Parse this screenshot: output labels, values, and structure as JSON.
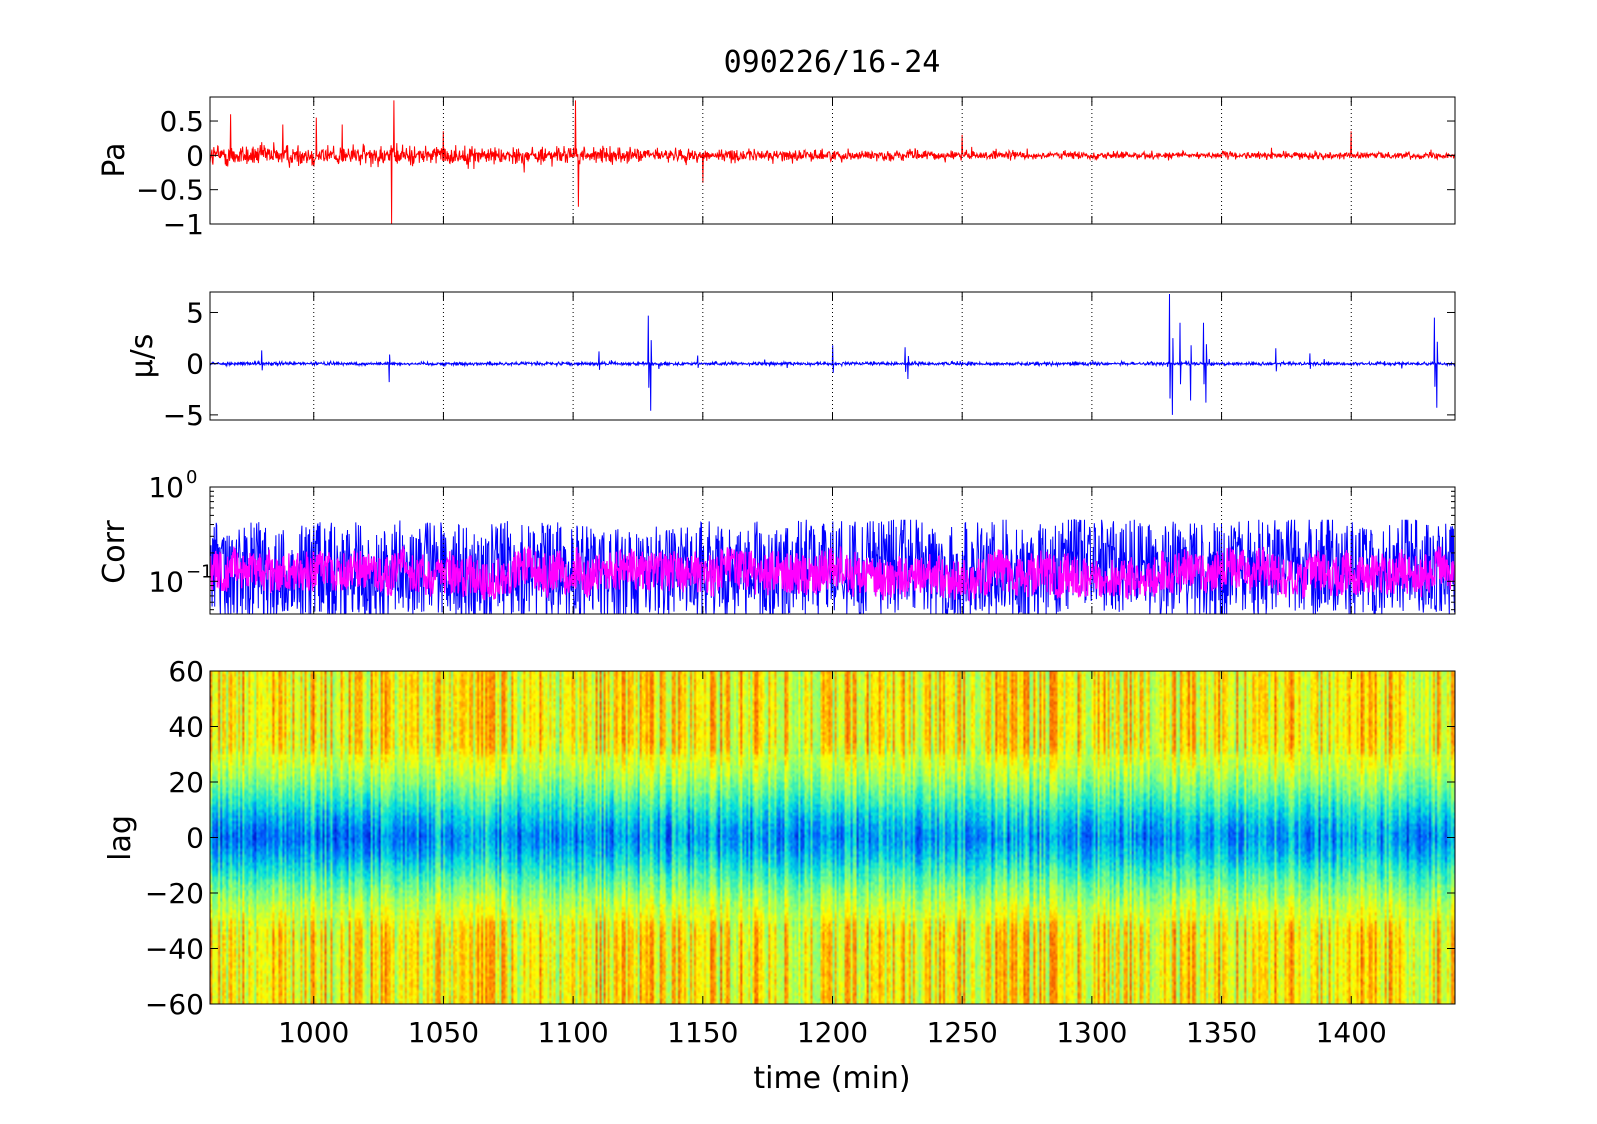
{
  "figure": {
    "title": "090226/16-24",
    "xlabel": "time (min)"
  },
  "chart_data": [
    {
      "type": "line",
      "panel": "pressure",
      "ylabel": "Pa",
      "xlim": [
        960,
        1440
      ],
      "ylim": [
        -1,
        0.85
      ],
      "xticks": [
        1000,
        1050,
        1100,
        1150,
        1200,
        1250,
        1300,
        1350,
        1400
      ],
      "yticks": [
        -1,
        -0.5,
        0,
        0.5
      ],
      "ytick_labels": [
        "−1",
        "−0.5",
        "0",
        "0.5"
      ],
      "grid": "x-dotted",
      "series": [
        {
          "color": "#ff0000",
          "noise_amplitude_trend": [
            [
              960,
              0.22
            ],
            [
              1050,
              0.18
            ],
            [
              1150,
              0.12
            ],
            [
              1300,
              0.07
            ],
            [
              1440,
              0.06
            ]
          ],
          "spikes": [
            [
              968,
              0.6
            ],
            [
              988,
              0.45
            ],
            [
              1001,
              0.55
            ],
            [
              1011,
              0.45
            ],
            [
              1030,
              -1.0
            ],
            [
              1031,
              0.8
            ],
            [
              1050,
              0.35
            ],
            [
              1101,
              0.8
            ],
            [
              1102,
              -0.75
            ],
            [
              1150,
              -0.4
            ],
            [
              1250,
              0.3
            ],
            [
              1400,
              0.35
            ]
          ]
        }
      ]
    },
    {
      "type": "line",
      "panel": "velocity",
      "ylabel": "μ/s",
      "xlim": [
        960,
        1440
      ],
      "ylim": [
        -5.5,
        7
      ],
      "xticks": [
        1000,
        1050,
        1100,
        1150,
        1200,
        1250,
        1300,
        1350,
        1400
      ],
      "yticks": [
        -5,
        0,
        5
      ],
      "ytick_labels": [
        "−5",
        "0",
        "5"
      ],
      "grid": "x-dotted",
      "series": [
        {
          "color": "#0000ff",
          "noise_amplitude": 0.25,
          "spikes": [
            [
              980,
              1.3
            ],
            [
              1029,
              -1.8
            ],
            [
              1110,
              1.2
            ],
            [
              1129,
              4.7
            ],
            [
              1130,
              -4.6
            ],
            [
              1148,
              0.8
            ],
            [
              1200,
              1.8
            ],
            [
              1228,
              1.6
            ],
            [
              1229,
              -1.5
            ],
            [
              1330,
              6.8
            ],
            [
              1331,
              -5.0
            ],
            [
              1334,
              4.0
            ],
            [
              1338,
              -3.6
            ],
            [
              1343,
              4.0
            ],
            [
              1344,
              -3.8
            ],
            [
              1371,
              1.5
            ],
            [
              1384,
              1.0
            ],
            [
              1432,
              4.5
            ],
            [
              1433,
              -4.3
            ]
          ]
        }
      ]
    },
    {
      "type": "line",
      "panel": "correlation",
      "ylabel": "Corr",
      "yscale": "log",
      "xlim": [
        960,
        1440
      ],
      "ylim": [
        0.045,
        1.0
      ],
      "xticks": [
        1000,
        1050,
        1100,
        1150,
        1200,
        1250,
        1300,
        1350,
        1400
      ],
      "yticks": [
        0.1,
        1.0
      ],
      "ytick_labels": [
        {
          "base": "10",
          "exp": "−1"
        },
        {
          "base": "10",
          "exp": "0"
        }
      ],
      "grid": "x-dotted",
      "series": [
        {
          "color": "#0000ff",
          "typical_range": [
            0.045,
            0.4
          ]
        },
        {
          "color": "#ff00ff",
          "typical_range": [
            0.06,
            0.25
          ]
        }
      ]
    },
    {
      "type": "heatmap",
      "panel": "lag",
      "ylabel": "lag",
      "xlim": [
        960,
        1440
      ],
      "ylim": [
        -60,
        60
      ],
      "xticks": [
        1000,
        1050,
        1100,
        1150,
        1200,
        1250,
        1300,
        1350,
        1400
      ],
      "xtick_labels": [
        "1000",
        "1050",
        "1100",
        "1150",
        "1200",
        "1250",
        "1300",
        "1350",
        "1400"
      ],
      "yticks": [
        -60,
        -40,
        -20,
        0,
        20,
        40,
        60
      ],
      "ytick_labels": [
        "−60",
        "−40",
        "−20",
        "0",
        "20",
        "40",
        "60"
      ],
      "colormap": [
        "#0000bf",
        "#0060ff",
        "#00e0e0",
        "#80ff80",
        "#ffff00",
        "#ff8000",
        "#c00000"
      ],
      "structure": "low values (blue/cyan) near lag 0, high values (yellow/orange) near lag ±40 to ±60"
    }
  ]
}
